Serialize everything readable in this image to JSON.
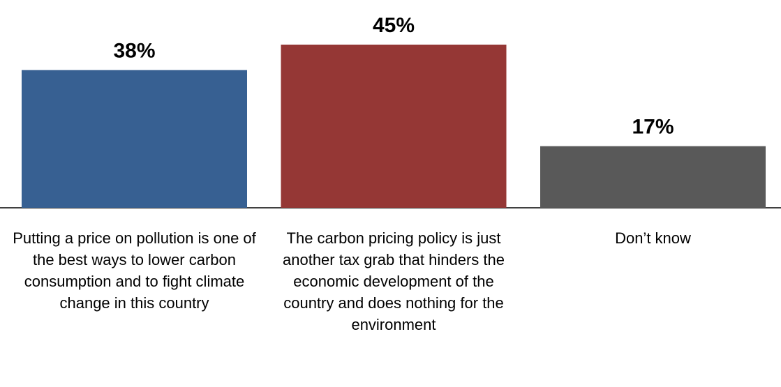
{
  "chart_data": {
    "type": "bar",
    "categories": [
      "Putting a price on pollution is one of the best ways to lower carbon consumption and to fight climate change in this country",
      "The carbon pricing policy is just another tax grab that hinders the economic development of the country and does nothing for the environment",
      "Don’t know"
    ],
    "values": [
      38,
      45,
      17
    ],
    "value_labels": [
      "38%",
      "45%",
      "17%"
    ],
    "colors": [
      "#376092",
      "#953735",
      "#595959"
    ]
  }
}
